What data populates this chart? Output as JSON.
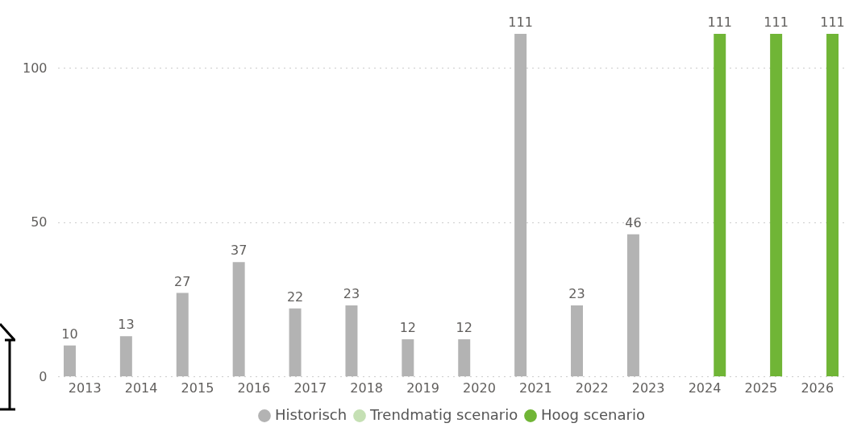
{
  "chart_data": {
    "type": "bar",
    "categories": [
      "2013",
      "2014",
      "2015",
      "2016",
      "2017",
      "2018",
      "2019",
      "2020",
      "2021",
      "2022",
      "2023",
      "2024",
      "2025",
      "2026"
    ],
    "series": [
      {
        "name": "Historisch",
        "color": "#b3b3b3",
        "values": [
          10,
          13,
          27,
          37,
          22,
          23,
          12,
          12,
          111,
          23,
          46,
          null,
          null,
          null
        ]
      },
      {
        "name": "Trendmatig scenario",
        "color": "#c5e0b4",
        "values": [
          null,
          null,
          null,
          null,
          null,
          null,
          null,
          null,
          null,
          null,
          null,
          null,
          null,
          null
        ]
      },
      {
        "name": "Hoog scenario",
        "color": "#70b536",
        "values": [
          null,
          null,
          null,
          null,
          null,
          null,
          null,
          null,
          null,
          null,
          null,
          111,
          111,
          111
        ]
      }
    ],
    "ylim": [
      0,
      111
    ],
    "yticks": [
      0,
      50,
      100
    ],
    "grid": "y",
    "legend": "bottom",
    "data_labels": true
  }
}
